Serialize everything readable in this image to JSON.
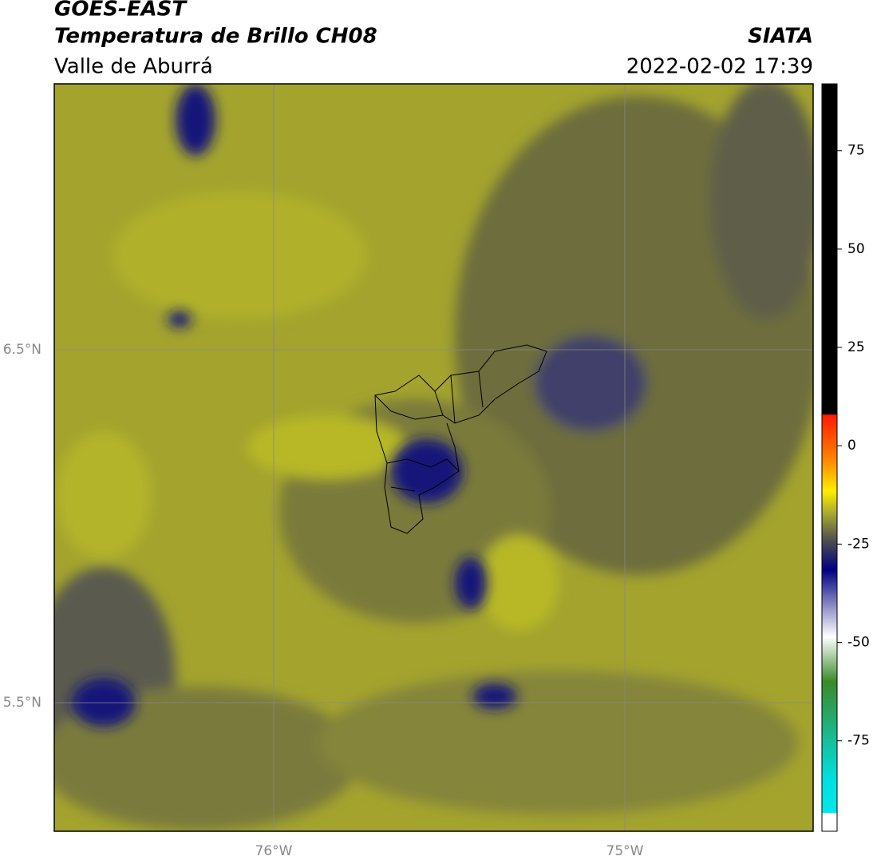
{
  "header": {
    "title": "GOES-EAST",
    "subtitle": "Temperatura de Brillo CH08",
    "region": "Valle de Aburrá",
    "source": "SIATA",
    "datetime": "2022-02-02 17:39"
  },
  "map": {
    "x_labels": [
      "76°W",
      "75°W"
    ],
    "y_labels": [
      "6.5°N",
      "5.5°N"
    ]
  },
  "colorbar": {
    "lim": [
      -98,
      92
    ],
    "ticks": [
      75,
      50,
      25,
      0,
      -25,
      -50,
      -75
    ]
  }
}
